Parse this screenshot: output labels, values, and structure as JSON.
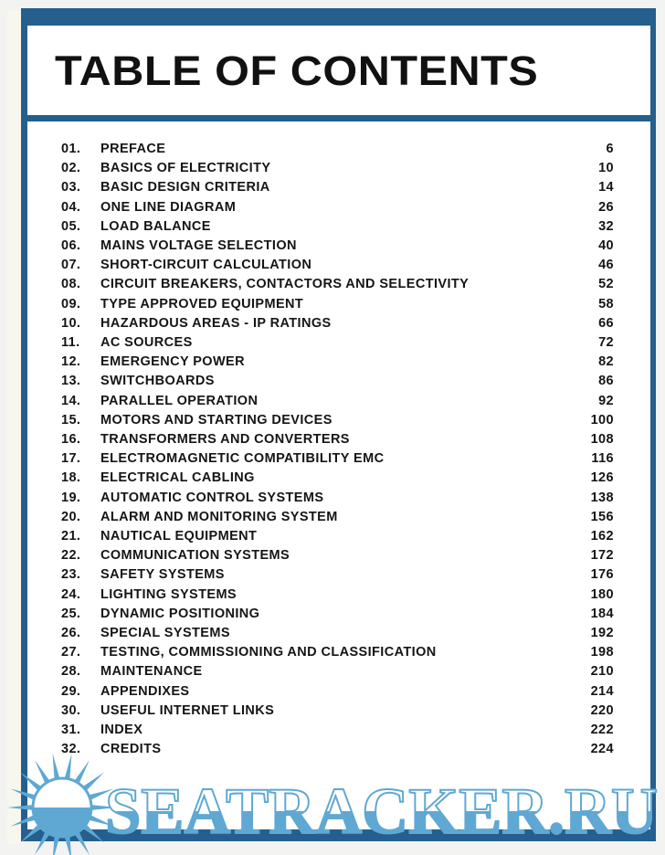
{
  "title": "TABLE OF CONTENTS",
  "colors": {
    "frame": "#255f8e",
    "watermark": "#5fa8d3"
  },
  "entries": [
    {
      "num": "01.",
      "label": "PREFACE",
      "page": "6"
    },
    {
      "num": "02.",
      "label": "BASICS OF ELECTRICITY",
      "page": "10"
    },
    {
      "num": "03.",
      "label": "BASIC DESIGN CRITERIA",
      "page": "14"
    },
    {
      "num": "04.",
      "label": "ONE LINE DIAGRAM",
      "page": "26"
    },
    {
      "num": "05.",
      "label": "LOAD BALANCE",
      "page": "32"
    },
    {
      "num": "06.",
      "label": "MAINS VOLTAGE SELECTION",
      "page": "40"
    },
    {
      "num": "07.",
      "label": "SHORT-CIRCUIT CALCULATION",
      "page": "46"
    },
    {
      "num": "08.",
      "label": "CIRCUIT BREAKERS, CONTACTORS AND SELECTIVITY",
      "page": "52"
    },
    {
      "num": "09.",
      "label": "TYPE APPROVED EQUIPMENT",
      "page": "58"
    },
    {
      "num": "10.",
      "label": "HAZARDOUS AREAS - IP RATINGS",
      "page": "66"
    },
    {
      "num": "11.",
      "label": "AC SOURCES",
      "page": "72"
    },
    {
      "num": "12.",
      "label": "EMERGENCY POWER",
      "page": "82"
    },
    {
      "num": "13.",
      "label": "SWITCHBOARDS",
      "page": "86"
    },
    {
      "num": "14.",
      "label": "PARALLEL OPERATION",
      "page": "92"
    },
    {
      "num": "15.",
      "label": "MOTORS AND STARTING DEVICES",
      "page": "100"
    },
    {
      "num": "16.",
      "label": "TRANSFORMERS AND CONVERTERS",
      "page": "108"
    },
    {
      "num": "17.",
      "label": "ELECTROMAGNETIC COMPATIBILITY EMC",
      "page": "116"
    },
    {
      "num": "18.",
      "label": "ELECTRICAL CABLING",
      "page": "126"
    },
    {
      "num": "19.",
      "label": "AUTOMATIC CONTROL SYSTEMS",
      "page": "138"
    },
    {
      "num": "20.",
      "label": "ALARM AND MONITORING SYSTEM",
      "page": "156"
    },
    {
      "num": "21.",
      "label": "NAUTICAL EQUIPMENT",
      "page": "162"
    },
    {
      "num": "22.",
      "label": "COMMUNICATION SYSTEMS",
      "page": "172"
    },
    {
      "num": "23.",
      "label": "SAFETY SYSTEMS",
      "page": "176"
    },
    {
      "num": "24.",
      "label": "LIGHTING SYSTEMS",
      "page": "180"
    },
    {
      "num": "25.",
      "label": "DYNAMIC POSITIONING",
      "page": "184"
    },
    {
      "num": "26.",
      "label": "SPECIAL SYSTEMS",
      "page": "192"
    },
    {
      "num": "27.",
      "label": "TESTING, COMMISSIONING AND CLASSIFICATION",
      "page": "198"
    },
    {
      "num": "28.",
      "label": "MAINTENANCE",
      "page": "210"
    },
    {
      "num": "29.",
      "label": "APPENDIXES",
      "page": "214"
    },
    {
      "num": "30.",
      "label": "USEFUL INTERNET LINKS",
      "page": "220"
    },
    {
      "num": "31.",
      "label": "INDEX",
      "page": "222"
    },
    {
      "num": "32.",
      "label": "CREDITS",
      "page": "224"
    }
  ],
  "watermark": {
    "text": "SEATRACKER.RU"
  }
}
